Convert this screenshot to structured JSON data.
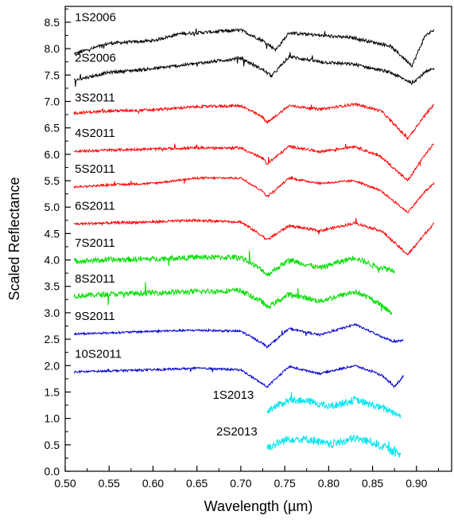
{
  "chart_data": {
    "type": "line",
    "xlabel": "Wavelength (µm)",
    "ylabel": "Scaled Reflectance",
    "xlim": [
      0.5,
      0.94
    ],
    "ylim": [
      0.0,
      8.8
    ],
    "x_ticks": [
      "0.50",
      "0.55",
      "0.60",
      "0.65",
      "0.70",
      "0.75",
      "0.80",
      "0.85",
      "0.90"
    ],
    "y_ticks": [
      "0.0",
      "0.5",
      "1.0",
      "1.5",
      "2.0",
      "2.5",
      "3.0",
      "3.5",
      "4.0",
      "4.5",
      "5.0",
      "5.5",
      "6.0",
      "6.5",
      "7.0",
      "7.5",
      "8.0",
      "8.5"
    ],
    "grid": false,
    "legend": "none",
    "series": [
      {
        "name": "1S2006",
        "color": "#000000",
        "x_range": [
          0.51,
          0.92
        ],
        "noise": 0.03,
        "points": [
          [
            0.51,
            7.9
          ],
          [
            0.55,
            8.1
          ],
          [
            0.6,
            8.15
          ],
          [
            0.63,
            8.28
          ],
          [
            0.7,
            8.35
          ],
          [
            0.725,
            8.15
          ],
          [
            0.74,
            7.98
          ],
          [
            0.755,
            8.3
          ],
          [
            0.79,
            8.25
          ],
          [
            0.83,
            8.2
          ],
          [
            0.87,
            8.05
          ],
          [
            0.895,
            7.68
          ],
          [
            0.91,
            8.25
          ],
          [
            0.92,
            8.35
          ]
        ]
      },
      {
        "name": "2S2006",
        "color": "#000000",
        "x_range": [
          0.51,
          0.92
        ],
        "noise": 0.03,
        "points": [
          [
            0.51,
            7.4
          ],
          [
            0.55,
            7.55
          ],
          [
            0.6,
            7.62
          ],
          [
            0.65,
            7.72
          ],
          [
            0.7,
            7.82
          ],
          [
            0.725,
            7.6
          ],
          [
            0.735,
            7.48
          ],
          [
            0.755,
            7.85
          ],
          [
            0.79,
            7.75
          ],
          [
            0.83,
            7.7
          ],
          [
            0.87,
            7.55
          ],
          [
            0.895,
            7.35
          ],
          [
            0.91,
            7.55
          ],
          [
            0.92,
            7.62
          ]
        ]
      },
      {
        "name": "3S2011",
        "color": "#ff0000",
        "x_range": [
          0.51,
          0.92
        ],
        "noise": 0.025,
        "points": [
          [
            0.51,
            6.78
          ],
          [
            0.55,
            6.82
          ],
          [
            0.6,
            6.84
          ],
          [
            0.65,
            6.9
          ],
          [
            0.7,
            6.92
          ],
          [
            0.725,
            6.7
          ],
          [
            0.73,
            6.6
          ],
          [
            0.755,
            6.92
          ],
          [
            0.79,
            6.85
          ],
          [
            0.83,
            6.95
          ],
          [
            0.86,
            6.82
          ],
          [
            0.89,
            6.3
          ],
          [
            0.91,
            6.75
          ],
          [
            0.92,
            6.95
          ]
        ]
      },
      {
        "name": "4S2011",
        "color": "#ff0000",
        "x_range": [
          0.51,
          0.92
        ],
        "noise": 0.025,
        "points": [
          [
            0.51,
            6.05
          ],
          [
            0.55,
            6.08
          ],
          [
            0.6,
            6.1
          ],
          [
            0.65,
            6.12
          ],
          [
            0.7,
            6.12
          ],
          [
            0.725,
            5.92
          ],
          [
            0.73,
            5.82
          ],
          [
            0.755,
            6.15
          ],
          [
            0.79,
            6.05
          ],
          [
            0.83,
            6.15
          ],
          [
            0.86,
            5.95
          ],
          [
            0.89,
            5.5
          ],
          [
            0.91,
            6.0
          ],
          [
            0.92,
            6.2
          ]
        ]
      },
      {
        "name": "5S2011",
        "color": "#ff0000",
        "x_range": [
          0.51,
          0.92
        ],
        "noise": 0.02,
        "points": [
          [
            0.51,
            5.38
          ],
          [
            0.55,
            5.42
          ],
          [
            0.6,
            5.45
          ],
          [
            0.65,
            5.55
          ],
          [
            0.7,
            5.55
          ],
          [
            0.725,
            5.3
          ],
          [
            0.73,
            5.2
          ],
          [
            0.755,
            5.55
          ],
          [
            0.79,
            5.45
          ],
          [
            0.83,
            5.5
          ],
          [
            0.86,
            5.3
          ],
          [
            0.89,
            4.9
          ],
          [
            0.91,
            5.3
          ],
          [
            0.92,
            5.45
          ]
        ]
      },
      {
        "name": "6S2011",
        "color": "#ff0000",
        "x_range": [
          0.51,
          0.92
        ],
        "noise": 0.025,
        "points": [
          [
            0.51,
            4.68
          ],
          [
            0.55,
            4.7
          ],
          [
            0.6,
            4.72
          ],
          [
            0.65,
            4.75
          ],
          [
            0.7,
            4.72
          ],
          [
            0.725,
            4.45
          ],
          [
            0.73,
            4.38
          ],
          [
            0.755,
            4.65
          ],
          [
            0.79,
            4.55
          ],
          [
            0.83,
            4.7
          ],
          [
            0.86,
            4.55
          ],
          [
            0.89,
            4.1
          ],
          [
            0.91,
            4.5
          ],
          [
            0.92,
            4.7
          ]
        ]
      },
      {
        "name": "7S2011",
        "color": "#00dd00",
        "x_range": [
          0.51,
          0.875
        ],
        "noise": 0.05,
        "points": [
          [
            0.51,
            3.98
          ],
          [
            0.55,
            4.0
          ],
          [
            0.6,
            4.02
          ],
          [
            0.65,
            4.05
          ],
          [
            0.7,
            4.05
          ],
          [
            0.725,
            3.8
          ],
          [
            0.73,
            3.72
          ],
          [
            0.755,
            4.0
          ],
          [
            0.79,
            3.85
          ],
          [
            0.83,
            4.05
          ],
          [
            0.85,
            3.9
          ],
          [
            0.875,
            3.8
          ]
        ]
      },
      {
        "name": "8S2011",
        "color": "#00dd00",
        "x_range": [
          0.51,
          0.872
        ],
        "noise": 0.05,
        "points": [
          [
            0.51,
            3.32
          ],
          [
            0.55,
            3.35
          ],
          [
            0.6,
            3.38
          ],
          [
            0.65,
            3.4
          ],
          [
            0.7,
            3.42
          ],
          [
            0.725,
            3.2
          ],
          [
            0.73,
            3.1
          ],
          [
            0.755,
            3.35
          ],
          [
            0.79,
            3.22
          ],
          [
            0.83,
            3.4
          ],
          [
            0.85,
            3.25
          ],
          [
            0.872,
            3.0
          ]
        ]
      },
      {
        "name": "9S2011",
        "color": "#0000cc",
        "x_range": [
          0.51,
          0.885
        ],
        "noise": 0.02,
        "points": [
          [
            0.51,
            2.6
          ],
          [
            0.55,
            2.62
          ],
          [
            0.6,
            2.65
          ],
          [
            0.65,
            2.67
          ],
          [
            0.7,
            2.65
          ],
          [
            0.725,
            2.42
          ],
          [
            0.73,
            2.35
          ],
          [
            0.755,
            2.7
          ],
          [
            0.79,
            2.58
          ],
          [
            0.83,
            2.78
          ],
          [
            0.86,
            2.55
          ],
          [
            0.875,
            2.45
          ],
          [
            0.885,
            2.48
          ]
        ]
      },
      {
        "name": "10S2011",
        "color": "#0000cc",
        "x_range": [
          0.51,
          0.885
        ],
        "noise": 0.02,
        "points": [
          [
            0.51,
            1.88
          ],
          [
            0.55,
            1.9
          ],
          [
            0.6,
            1.92
          ],
          [
            0.65,
            1.95
          ],
          [
            0.7,
            1.92
          ],
          [
            0.725,
            1.65
          ],
          [
            0.73,
            1.6
          ],
          [
            0.755,
            1.98
          ],
          [
            0.79,
            1.85
          ],
          [
            0.83,
            2.0
          ],
          [
            0.86,
            1.82
          ],
          [
            0.875,
            1.6
          ],
          [
            0.885,
            1.8
          ]
        ]
      },
      {
        "name": "1S2013",
        "color": "#00e5ee",
        "x_range": [
          0.73,
          0.882
        ],
        "noise": 0.07,
        "points": [
          [
            0.73,
            1.15
          ],
          [
            0.755,
            1.35
          ],
          [
            0.78,
            1.32
          ],
          [
            0.8,
            1.22
          ],
          [
            0.83,
            1.35
          ],
          [
            0.85,
            1.25
          ],
          [
            0.87,
            1.15
          ],
          [
            0.882,
            1.05
          ]
        ]
      },
      {
        "name": "2S2013",
        "color": "#00e5ee",
        "x_range": [
          0.73,
          0.882
        ],
        "noise": 0.08,
        "points": [
          [
            0.73,
            0.45
          ],
          [
            0.755,
            0.62
          ],
          [
            0.78,
            0.6
          ],
          [
            0.8,
            0.5
          ],
          [
            0.83,
            0.62
          ],
          [
            0.85,
            0.55
          ],
          [
            0.87,
            0.4
          ],
          [
            0.882,
            0.3
          ]
        ]
      }
    ],
    "series_labels": [
      {
        "text": "1S2006",
        "x": 0.511,
        "y": 8.52
      },
      {
        "text": "2S2006",
        "x": 0.511,
        "y": 7.75
      },
      {
        "text": "3S2011",
        "x": 0.511,
        "y": 7.0
      },
      {
        "text": "4S2011",
        "x": 0.511,
        "y": 6.33
      },
      {
        "text": "5S2011",
        "x": 0.511,
        "y": 5.65
      },
      {
        "text": "6S2011",
        "x": 0.511,
        "y": 4.95
      },
      {
        "text": "7S2011",
        "x": 0.511,
        "y": 4.25
      },
      {
        "text": "8S2011",
        "x": 0.511,
        "y": 3.57
      },
      {
        "text": "9S2011",
        "x": 0.511,
        "y": 2.86
      },
      {
        "text": "10S2011",
        "x": 0.511,
        "y": 2.15
      },
      {
        "text": "1S2013",
        "x": 0.668,
        "y": 1.37
      },
      {
        "text": "2S2013",
        "x": 0.672,
        "y": 0.68
      }
    ]
  }
}
